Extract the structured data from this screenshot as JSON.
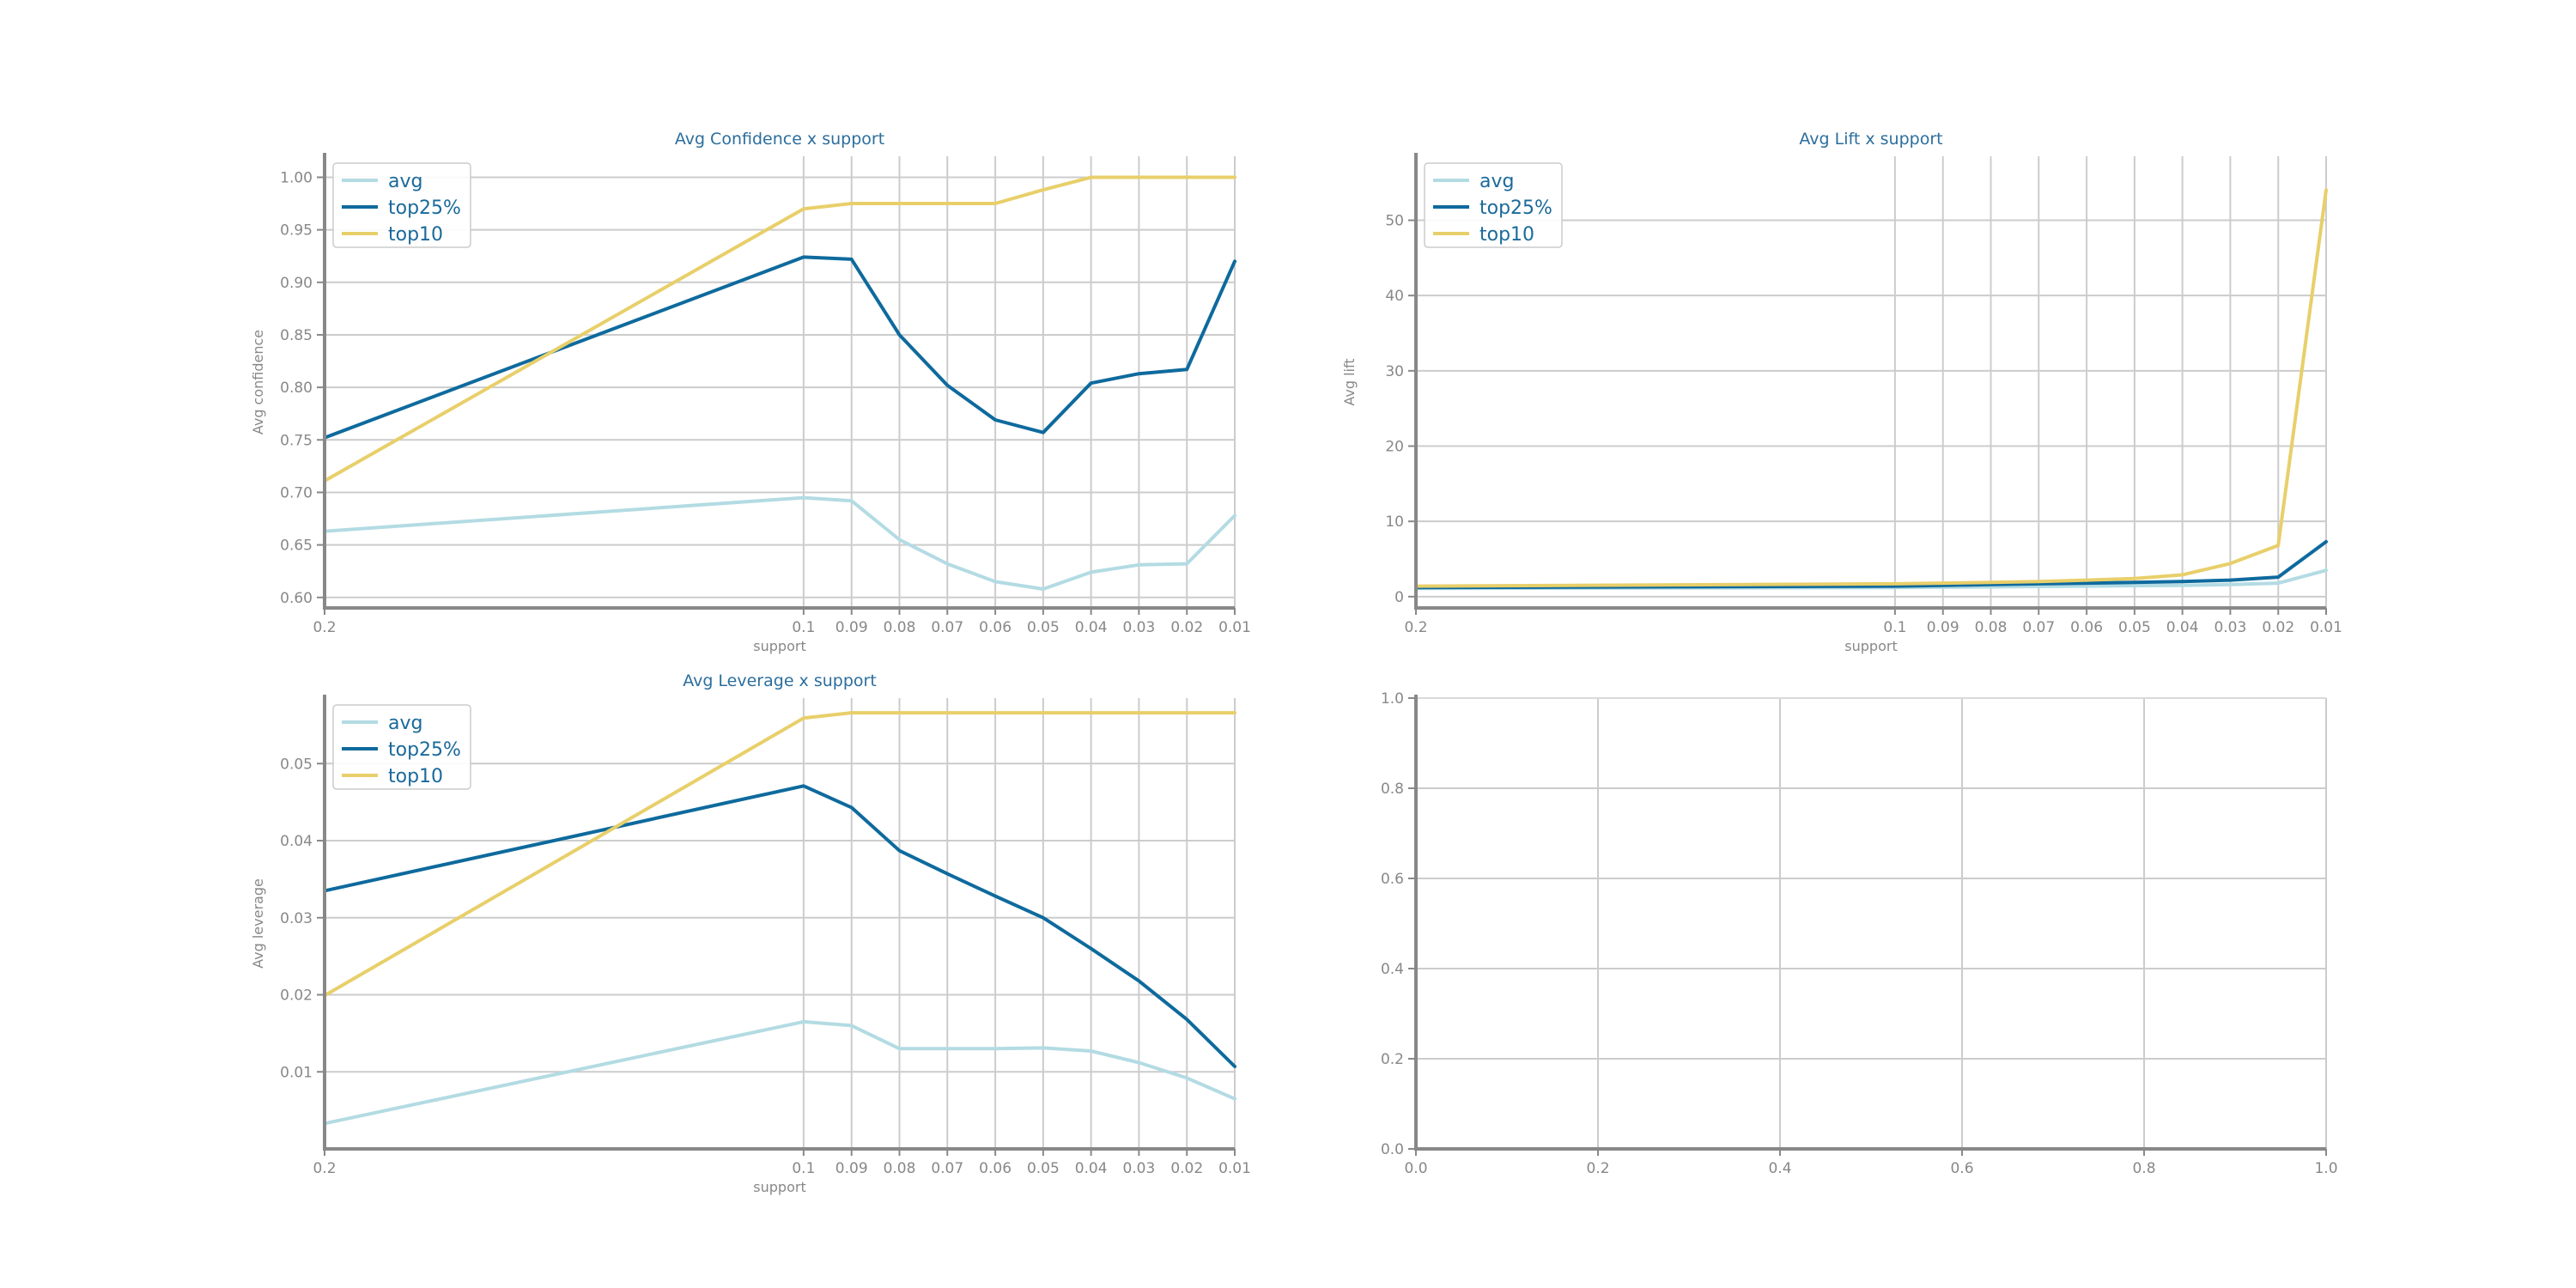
{
  "chart_data": [
    {
      "type": "line",
      "title": "Avg Confidence x support",
      "xlabel": "support",
      "ylabel": "Avg confidence",
      "x": [
        0.2,
        0.1,
        0.09,
        0.08,
        0.07,
        0.06,
        0.05,
        0.04,
        0.03,
        0.02,
        0.01
      ],
      "x_tick_labels": [
        "0.2",
        "0.1",
        "0.09",
        "0.08",
        "0.07",
        "0.06",
        "0.05",
        "0.04",
        "0.03",
        "0.02",
        "0.01"
      ],
      "ylim": [
        0.59,
        1.02
      ],
      "y_ticks": [
        0.6,
        0.65,
        0.7,
        0.75,
        0.8,
        0.85,
        0.9,
        0.95,
        1.0
      ],
      "y_tick_labels": [
        "0.60",
        "0.65",
        "0.70",
        "0.75",
        "0.80",
        "0.85",
        "0.90",
        "0.95",
        "1.00"
      ],
      "grid": true,
      "legend": "upper left",
      "series": [
        {
          "name": "avg",
          "color": "#b3dbe3",
          "values": [
            0.663,
            0.695,
            0.692,
            0.655,
            0.632,
            0.615,
            0.608,
            0.624,
            0.631,
            0.632,
            0.678
          ]
        },
        {
          "name": "top25%",
          "color": "#0e6a9d",
          "values": [
            0.752,
            0.924,
            0.922,
            0.85,
            0.802,
            0.769,
            0.757,
            0.804,
            0.813,
            0.817,
            0.92
          ]
        },
        {
          "name": "top10",
          "color": "#e8cf6a",
          "values": [
            0.711,
            0.97,
            0.975,
            0.975,
            0.975,
            0.975,
            0.988,
            1.0,
            1.0,
            1.0,
            1.0
          ]
        }
      ]
    },
    {
      "type": "line",
      "title": "Avg Lift x support",
      "xlabel": "support",
      "ylabel": "Avg lift",
      "x": [
        0.2,
        0.1,
        0.09,
        0.08,
        0.07,
        0.06,
        0.05,
        0.04,
        0.03,
        0.02,
        0.01
      ],
      "x_tick_labels": [
        "0.2",
        "0.1",
        "0.09",
        "0.08",
        "0.07",
        "0.06",
        "0.05",
        "0.04",
        "0.03",
        "0.02",
        "0.01"
      ],
      "ylim": [
        -1.5,
        58.5
      ],
      "y_ticks": [
        0,
        10,
        20,
        30,
        40,
        50
      ],
      "y_tick_labels": [
        "0",
        "10",
        "20",
        "30",
        "40",
        "50"
      ],
      "grid": true,
      "legend": "upper left",
      "series": [
        {
          "name": "avg",
          "color": "#b3dbe3",
          "values": [
            1.1,
            1.2,
            1.25,
            1.3,
            1.35,
            1.4,
            1.45,
            1.5,
            1.6,
            1.8,
            3.5
          ]
        },
        {
          "name": "top25%",
          "color": "#0e6a9d",
          "values": [
            1.2,
            1.4,
            1.5,
            1.6,
            1.7,
            1.8,
            1.9,
            2.0,
            2.2,
            2.6,
            7.3
          ]
        },
        {
          "name": "top10",
          "color": "#e8cf6a",
          "values": [
            1.4,
            1.7,
            1.8,
            1.9,
            2.0,
            2.2,
            2.4,
            2.9,
            4.4,
            6.8,
            54.0
          ]
        }
      ]
    },
    {
      "type": "line",
      "title": "Avg Leverage x support",
      "xlabel": "support",
      "ylabel": "Avg leverage",
      "x": [
        0.2,
        0.1,
        0.09,
        0.08,
        0.07,
        0.06,
        0.05,
        0.04,
        0.03,
        0.02,
        0.01
      ],
      "x_tick_labels": [
        "0.2",
        "0.1",
        "0.09",
        "0.08",
        "0.07",
        "0.06",
        "0.05",
        "0.04",
        "0.03",
        "0.02",
        "0.01"
      ],
      "ylim": [
        0.0,
        0.0585
      ],
      "y_ticks": [
        0.01,
        0.02,
        0.03,
        0.04,
        0.05
      ],
      "y_tick_labels": [
        "0.01",
        "0.02",
        "0.03",
        "0.04",
        "0.05"
      ],
      "grid": true,
      "legend": "upper left",
      "series": [
        {
          "name": "avg",
          "color": "#b3dbe3",
          "values": [
            0.0033,
            0.0165,
            0.016,
            0.013,
            0.013,
            0.013,
            0.0131,
            0.0127,
            0.0112,
            0.0092,
            0.0065
          ]
        },
        {
          "name": "top25%",
          "color": "#0e6a9d",
          "values": [
            0.0335,
            0.0471,
            0.0443,
            0.0387,
            0.0357,
            0.0328,
            0.03,
            0.026,
            0.0218,
            0.0168,
            0.0107
          ]
        },
        {
          "name": "top10",
          "color": "#e8cf6a",
          "values": [
            0.0199,
            0.0559,
            0.0566,
            0.0566,
            0.0566,
            0.0566,
            0.0566,
            0.0566,
            0.0566,
            0.0566,
            0.0566
          ]
        }
      ]
    },
    {
      "type": "line",
      "title": "",
      "xlabel": "",
      "ylabel": "",
      "xlim": [
        0.0,
        1.0
      ],
      "ylim": [
        0.0,
        1.0
      ],
      "x_ticks": [
        0.0,
        0.2,
        0.4,
        0.6,
        0.8,
        1.0
      ],
      "x_tick_labels": [
        "0.0",
        "0.2",
        "0.4",
        "0.6",
        "0.8",
        "1.0"
      ],
      "y_ticks": [
        0.0,
        0.2,
        0.4,
        0.6,
        0.8,
        1.0
      ],
      "y_tick_labels": [
        "0.0",
        "0.2",
        "0.4",
        "0.6",
        "0.8",
        "1.0"
      ],
      "grid": true,
      "series": []
    }
  ]
}
